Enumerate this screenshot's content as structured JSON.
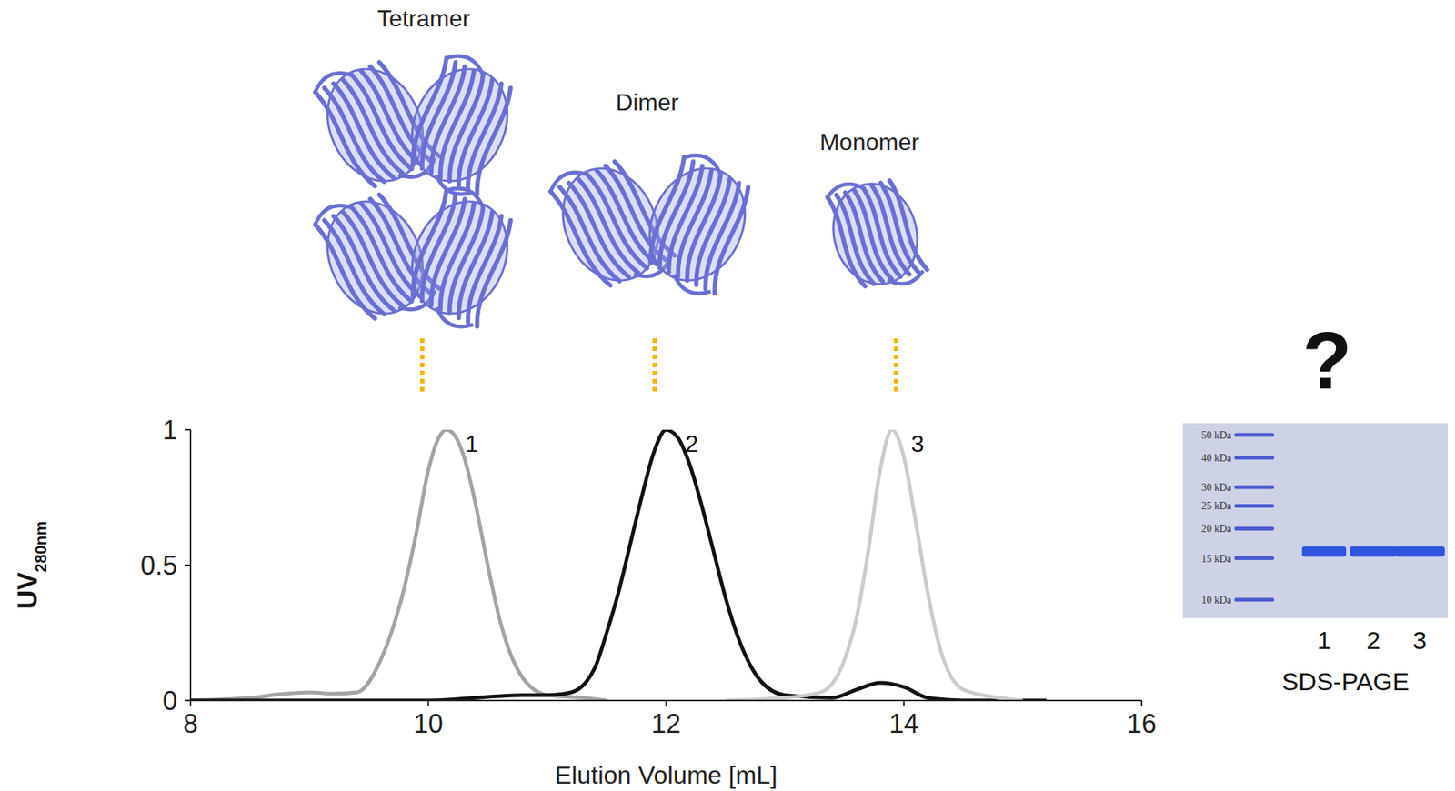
{
  "chart_data": {
    "type": "line",
    "xlabel": "Elution Volume [mL]",
    "ylabel": "UV",
    "ylabel_subscript": "280nm",
    "xlim": [
      8,
      16
    ],
    "xticks": [
      8,
      10,
      12,
      14,
      16
    ],
    "ylim": [
      0,
      1
    ],
    "yticks": [
      0,
      0.5,
      1
    ],
    "grid": false,
    "series": [
      {
        "name": "1",
        "color": "#a3a3a3",
        "x": [
          8,
          8.5,
          8.8,
          9.0,
          9.2,
          9.4,
          9.6,
          9.8,
          9.9,
          10.0,
          10.1,
          10.15,
          10.2,
          10.3,
          10.4,
          10.5,
          10.6,
          10.8,
          11.0,
          11.3,
          11.5
        ],
        "values": [
          0,
          0.01,
          0.025,
          0.03,
          0.025,
          0.03,
          0.15,
          0.42,
          0.62,
          0.85,
          0.98,
          1.0,
          0.99,
          0.9,
          0.72,
          0.5,
          0.3,
          0.08,
          0.02,
          0.01,
          0
        ]
      },
      {
        "name": "2",
        "color": "#111111",
        "x": [
          8,
          10,
          10.8,
          11.0,
          11.2,
          11.4,
          11.5,
          11.6,
          11.7,
          11.8,
          11.9,
          12.0,
          12.1,
          12.2,
          12.3,
          12.4,
          12.5,
          12.6,
          12.8,
          13.0,
          13.4,
          13.6,
          13.8,
          14.0,
          14.2,
          14.5,
          15.2
        ],
        "values": [
          0,
          0,
          0.02,
          0.02,
          0.03,
          0.12,
          0.25,
          0.4,
          0.58,
          0.76,
          0.92,
          1.0,
          0.97,
          0.87,
          0.72,
          0.55,
          0.38,
          0.24,
          0.07,
          0.02,
          0.01,
          0.04,
          0.065,
          0.05,
          0.01,
          0,
          0
        ]
      },
      {
        "name": "3",
        "color": "#cbcbcb",
        "x": [
          12.5,
          13.0,
          13.3,
          13.5,
          13.6,
          13.7,
          13.8,
          13.9,
          14.0,
          14.1,
          14.2,
          14.3,
          14.5,
          14.8,
          15.0
        ],
        "values": [
          0,
          0.01,
          0.03,
          0.15,
          0.3,
          0.55,
          0.85,
          1.0,
          0.9,
          0.66,
          0.4,
          0.2,
          0.04,
          0.01,
          0
        ]
      }
    ],
    "annotations": {
      "structures": [
        "Tetramer",
        "Dimer",
        "Monomer"
      ],
      "question": "?"
    }
  },
  "gel": {
    "title": "SDS-PAGE",
    "lanes": [
      "1",
      "2",
      "3"
    ],
    "markers": [
      {
        "value": 50,
        "label": "50 kDa"
      },
      {
        "value": 40,
        "label": "40 kDa"
      },
      {
        "value": 30,
        "label": "30 kDa"
      },
      {
        "value": 25,
        "label": "25 kDa"
      },
      {
        "value": 20,
        "label": "20 kDa"
      },
      {
        "value": 15,
        "label": "15 kDa"
      },
      {
        "value": 10,
        "label": "10 kDa"
      }
    ],
    "band_kda": [
      16,
      16,
      16
    ]
  }
}
